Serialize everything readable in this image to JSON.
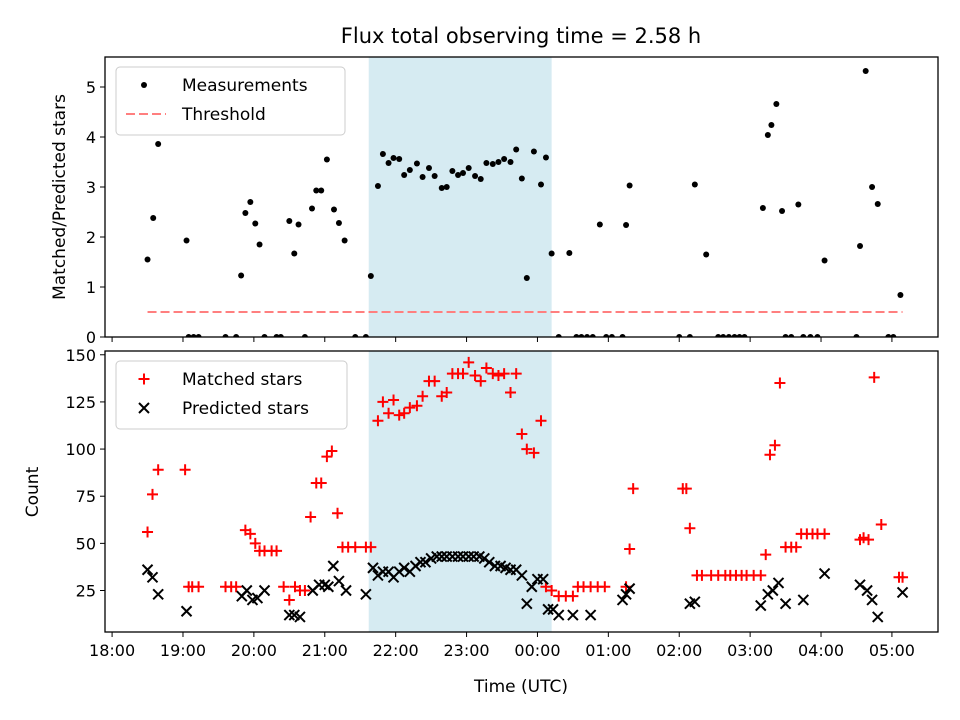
{
  "chart_data": [
    {
      "type": "scatter",
      "title": "Flux total observing time = 2.58 h",
      "ylabel": "Matched/Predicted stars",
      "xlabel": "",
      "ylim": [
        0,
        5.6
      ],
      "yticks": [
        0,
        1,
        2,
        3,
        4,
        5
      ],
      "grid": false,
      "legend": "top-left",
      "threshold": 0.5,
      "legend_labels": [
        "Measurements",
        "Threshold"
      ],
      "series": [
        {
          "name": "Measurements",
          "x": [
            18.5,
            18.58,
            18.65,
            19.05,
            19.08,
            19.15,
            19.22,
            19.6,
            19.75,
            19.82,
            19.88,
            19.95,
            20.02,
            20.08,
            20.15,
            20.32,
            20.38,
            20.5,
            20.57,
            20.63,
            20.72,
            20.82,
            20.88,
            20.95,
            21.03,
            21.13,
            21.2,
            21.28,
            21.43,
            21.58,
            21.65,
            21.75,
            21.82,
            21.9,
            21.97,
            22.05,
            22.12,
            22.2,
            22.3,
            22.38,
            22.47,
            22.55,
            22.65,
            22.72,
            22.8,
            22.88,
            22.95,
            23.03,
            23.12,
            23.2,
            23.28,
            23.37,
            23.45,
            23.53,
            23.62,
            23.7,
            23.78,
            23.85,
            23.95,
            24.05,
            24.12,
            24.2,
            24.3,
            24.45,
            24.55,
            24.62,
            24.7,
            24.78,
            24.88,
            24.97,
            25.05,
            25.2,
            25.25,
            25.3,
            26.0,
            26.15,
            26.22,
            26.38,
            26.55,
            26.62,
            26.7,
            26.78,
            26.85,
            26.92,
            27.18,
            27.25,
            27.3,
            27.37,
            27.45,
            27.5,
            27.58,
            27.68,
            27.75,
            27.85,
            27.95,
            28.05,
            28.5,
            28.55,
            28.63,
            28.72,
            28.8,
            28.95,
            29.02,
            29.12
          ],
          "y": [
            1.55,
            2.38,
            3.86,
            1.93,
            0,
            0,
            0,
            0,
            0,
            1.23,
            2.48,
            2.7,
            2.27,
            1.85,
            0,
            0,
            0,
            2.32,
            1.67,
            2.25,
            0,
            2.57,
            2.93,
            2.93,
            3.55,
            2.55,
            2.28,
            1.93,
            0,
            0,
            1.22,
            3.02,
            3.66,
            3.48,
            3.58,
            3.56,
            3.24,
            3.34,
            3.47,
            3.2,
            3.38,
            3.22,
            2.98,
            3.0,
            3.32,
            3.24,
            3.28,
            3.38,
            3.22,
            3.16,
            3.48,
            3.46,
            3.5,
            3.56,
            3.5,
            3.75,
            3.17,
            1.18,
            3.71,
            3.05,
            3.59,
            1.67,
            0,
            1.68,
            0,
            0,
            0,
            0,
            2.25,
            0,
            0,
            0,
            2.24,
            3.03,
            0,
            0,
            3.05,
            1.65,
            0,
            0,
            0,
            0,
            0,
            0,
            2.58,
            4.04,
            4.24,
            4.66,
            2.52,
            0,
            0,
            2.65,
            0,
            0,
            0,
            1.53,
            0,
            1.82,
            5.32,
            3.0,
            2.66,
            0,
            0,
            0.84
          ]
        },
        {
          "name": "Threshold",
          "x": [
            18.5,
            29.15
          ],
          "y": [
            0.5,
            0.5
          ]
        }
      ]
    },
    {
      "type": "scatter",
      "title": "",
      "ylabel": "Count",
      "xlabel": "Time (UTC)",
      "ylim": [
        3,
        152
      ],
      "yticks": [
        25,
        50,
        75,
        100,
        125,
        150
      ],
      "grid": false,
      "legend": "top-left",
      "legend_labels": [
        "Matched stars",
        "Predicted stars"
      ],
      "series": [
        {
          "name": "Matched stars",
          "x": [
            18.5,
            18.57,
            18.65,
            19.03,
            19.08,
            19.13,
            19.22,
            19.6,
            19.68,
            19.75,
            19.88,
            19.95,
            20.02,
            20.08,
            20.15,
            20.25,
            20.32,
            20.42,
            20.5,
            20.58,
            20.65,
            20.72,
            20.8,
            20.88,
            20.95,
            21.03,
            21.1,
            21.18,
            21.25,
            21.33,
            21.43,
            21.58,
            21.65,
            21.75,
            21.82,
            21.9,
            21.97,
            22.05,
            22.12,
            22.2,
            22.3,
            22.38,
            22.47,
            22.55,
            22.65,
            22.72,
            22.8,
            22.88,
            22.95,
            23.03,
            23.12,
            23.2,
            23.28,
            23.37,
            23.45,
            23.53,
            23.62,
            23.7,
            23.78,
            23.85,
            23.95,
            24.05,
            24.12,
            24.2,
            24.3,
            24.4,
            24.5,
            24.57,
            24.65,
            24.75,
            24.85,
            24.95,
            25.25,
            25.3,
            25.35,
            26.05,
            26.1,
            26.15,
            26.25,
            26.32,
            26.45,
            26.55,
            26.65,
            26.72,
            26.8,
            26.88,
            26.95,
            27.05,
            27.15,
            27.22,
            27.28,
            27.35,
            27.42,
            27.5,
            27.58,
            27.65,
            27.72,
            27.8,
            27.88,
            27.95,
            28.05,
            28.55,
            28.6,
            28.67,
            28.75,
            28.85,
            29.1,
            29.15
          ],
          "y": [
            56,
            76,
            89,
            89,
            27,
            27,
            27,
            27,
            27,
            27,
            57,
            55,
            50,
            46,
            46,
            46,
            46,
            27,
            20,
            27,
            25,
            25,
            64,
            82,
            82,
            96,
            99,
            66,
            48,
            48,
            48,
            48,
            48,
            115,
            125,
            119,
            126,
            118,
            119,
            122,
            123,
            128,
            136,
            136,
            128,
            130,
            140,
            140,
            140,
            146,
            139,
            136,
            143,
            140,
            139,
            140,
            130,
            140,
            108,
            100,
            98,
            115,
            27,
            25,
            22,
            22,
            22,
            27,
            27,
            27,
            27,
            27,
            27,
            47,
            79,
            79,
            79,
            58,
            33,
            33,
            33,
            33,
            33,
            33,
            33,
            33,
            33,
            33,
            33,
            44,
            97,
            102,
            135,
            48,
            48,
            48,
            55,
            55,
            55,
            55,
            55,
            52,
            53,
            52,
            138,
            60,
            32,
            32
          ]
        },
        {
          "name": "Predicted stars",
          "x": [
            18.5,
            18.57,
            18.65,
            19.05,
            19.83,
            19.9,
            19.98,
            20.05,
            20.15,
            20.5,
            20.57,
            20.65,
            20.83,
            20.92,
            21.0,
            21.05,
            21.12,
            21.2,
            21.3,
            21.58,
            21.68,
            21.75,
            21.82,
            21.9,
            21.97,
            22.05,
            22.12,
            22.2,
            22.28,
            22.35,
            22.42,
            22.5,
            22.58,
            22.65,
            22.72,
            22.8,
            22.88,
            22.95,
            23.03,
            23.1,
            23.18,
            23.25,
            23.32,
            23.4,
            23.48,
            23.55,
            23.62,
            23.7,
            23.78,
            23.85,
            23.92,
            24.0,
            24.08,
            24.15,
            24.22,
            24.3,
            24.5,
            24.75,
            25.2,
            25.25,
            25.3,
            26.15,
            26.22,
            27.15,
            27.25,
            27.32,
            27.4,
            27.5,
            27.75,
            28.05,
            28.55,
            28.65,
            28.72,
            28.8,
            29.15
          ],
          "y": [
            36,
            32,
            23,
            14,
            22,
            25,
            20,
            21,
            25,
            12,
            12,
            11,
            25,
            28,
            28,
            27,
            38,
            30,
            25,
            23,
            37,
            33,
            35,
            35,
            32,
            35,
            37,
            35,
            38,
            40,
            40,
            42,
            43,
            43,
            43,
            43,
            43,
            43,
            43,
            43,
            43,
            42,
            40,
            38,
            38,
            37,
            36,
            36,
            33,
            18,
            27,
            31,
            31,
            15,
            15,
            12,
            12,
            12,
            20,
            23,
            26,
            18,
            19,
            17,
            23,
            25,
            29,
            18,
            20,
            34,
            28,
            25,
            20,
            11,
            24
          ]
        }
      ]
    }
  ],
  "shared_axis": {
    "shaded_span": [
      21.62,
      24.2
    ],
    "shade_color": "#add8e6",
    "xlim": [
      17.9,
      29.65
    ],
    "xticks": [
      18,
      19,
      20,
      21,
      22,
      23,
      24,
      25,
      26,
      27,
      28,
      29
    ],
    "xtick_labels": [
      "18:00",
      "19:00",
      "20:00",
      "21:00",
      "22:00",
      "23:00",
      "00:00",
      "01:00",
      "02:00",
      "03:00",
      "04:00",
      "05:00"
    ]
  },
  "colors": {
    "measurements": "#000000",
    "threshold": "#ff7f7f",
    "matched": "#ff0000",
    "predicted": "#000000"
  }
}
